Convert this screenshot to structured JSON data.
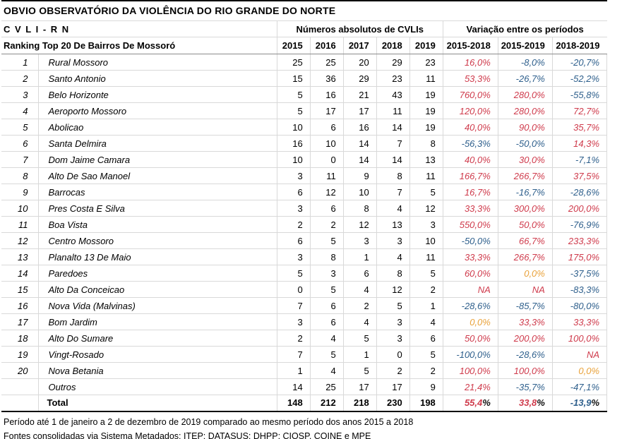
{
  "title": "OBVIO OBSERVATÓRIO DA VIOLÊNCIA DO RIO GRANDE DO NORTE",
  "colors": {
    "positive_variation": "#cf3b4c",
    "negative_variation": "#2e5f8c",
    "zero_variation": "#e9a23b",
    "na_variation": "#cf3b4c"
  },
  "chart_data": {
    "type": "table",
    "subtitle": "C V L I - R N",
    "group_headers": {
      "numbers": "Números absolutos de CVLIs",
      "variation": "Variação entre os períodos"
    },
    "ranking_header": "Ranking Top 20 De Bairros De Mossoró",
    "year_columns": [
      "2015",
      "2016",
      "2017",
      "2018",
      "2019"
    ],
    "variation_columns": [
      "2015-2018",
      "2015-2019",
      "2018-2019"
    ],
    "rows": [
      {
        "rank": "1",
        "name": "Rural Mossoro",
        "values": [
          25,
          25,
          20,
          29,
          23
        ],
        "variations": [
          "16,0%",
          "-8,0%",
          "-20,7%"
        ]
      },
      {
        "rank": "2",
        "name": "Santo Antonio",
        "values": [
          15,
          36,
          29,
          23,
          11
        ],
        "variations": [
          "53,3%",
          "-26,7%",
          "-52,2%"
        ]
      },
      {
        "rank": "3",
        "name": "Belo Horizonte",
        "values": [
          5,
          16,
          21,
          43,
          19
        ],
        "variations": [
          "760,0%",
          "280,0%",
          "-55,8%"
        ]
      },
      {
        "rank": "4",
        "name": "Aeroporto Mossoro",
        "values": [
          5,
          17,
          17,
          11,
          19
        ],
        "variations": [
          "120,0%",
          "280,0%",
          "72,7%"
        ]
      },
      {
        "rank": "5",
        "name": "Abolicao",
        "values": [
          10,
          6,
          16,
          14,
          19
        ],
        "variations": [
          "40,0%",
          "90,0%",
          "35,7%"
        ]
      },
      {
        "rank": "6",
        "name": "Santa Delmira",
        "values": [
          16,
          10,
          14,
          7,
          8
        ],
        "variations": [
          "-56,3%",
          "-50,0%",
          "14,3%"
        ]
      },
      {
        "rank": "7",
        "name": "Dom Jaime Camara",
        "values": [
          10,
          0,
          14,
          14,
          13
        ],
        "variations": [
          "40,0%",
          "30,0%",
          "-7,1%"
        ]
      },
      {
        "rank": "8",
        "name": "Alto De Sao Manoel",
        "values": [
          3,
          11,
          9,
          8,
          11
        ],
        "variations": [
          "166,7%",
          "266,7%",
          "37,5%"
        ]
      },
      {
        "rank": "9",
        "name": "Barrocas",
        "values": [
          6,
          12,
          10,
          7,
          5
        ],
        "variations": [
          "16,7%",
          "-16,7%",
          "-28,6%"
        ]
      },
      {
        "rank": "10",
        "name": "Pres Costa E Silva",
        "values": [
          3,
          6,
          8,
          4,
          12
        ],
        "variations": [
          "33,3%",
          "300,0%",
          "200,0%"
        ]
      },
      {
        "rank": "11",
        "name": "Boa Vista",
        "values": [
          2,
          2,
          12,
          13,
          3
        ],
        "variations": [
          "550,0%",
          "50,0%",
          "-76,9%"
        ]
      },
      {
        "rank": "12",
        "name": "Centro Mossoro",
        "values": [
          6,
          5,
          3,
          3,
          10
        ],
        "variations": [
          "-50,0%",
          "66,7%",
          "233,3%"
        ]
      },
      {
        "rank": "13",
        "name": "Planalto 13 De Maio",
        "values": [
          3,
          8,
          1,
          4,
          11
        ],
        "variations": [
          "33,3%",
          "266,7%",
          "175,0%"
        ]
      },
      {
        "rank": "14",
        "name": "Paredoes",
        "values": [
          5,
          3,
          6,
          8,
          5
        ],
        "variations": [
          "60,0%",
          "0,0%",
          "-37,5%"
        ]
      },
      {
        "rank": "15",
        "name": "Alto Da Conceicao",
        "values": [
          0,
          5,
          4,
          12,
          2
        ],
        "variations": [
          "NA",
          "NA",
          "-83,3%"
        ]
      },
      {
        "rank": "16",
        "name": "Nova Vida (Malvinas)",
        "values": [
          7,
          6,
          2,
          5,
          1
        ],
        "variations": [
          "-28,6%",
          "-85,7%",
          "-80,0%"
        ]
      },
      {
        "rank": "17",
        "name": "Bom Jardim",
        "values": [
          3,
          6,
          4,
          3,
          4
        ],
        "variations": [
          "0,0%",
          "33,3%",
          "33,3%"
        ]
      },
      {
        "rank": "18",
        "name": "Alto Do Sumare",
        "values": [
          2,
          4,
          5,
          3,
          6
        ],
        "variations": [
          "50,0%",
          "200,0%",
          "100,0%"
        ]
      },
      {
        "rank": "19",
        "name": "Vingt-Rosado",
        "values": [
          7,
          5,
          1,
          0,
          5
        ],
        "variations": [
          "-100,0%",
          "-28,6%",
          "NA"
        ]
      },
      {
        "rank": "20",
        "name": "Nova Betania",
        "values": [
          1,
          4,
          5,
          2,
          2
        ],
        "variations": [
          "100,0%",
          "100,0%",
          "0,0%"
        ]
      },
      {
        "rank": "",
        "name": "Outros",
        "values": [
          14,
          25,
          17,
          17,
          9
        ],
        "variations": [
          "21,4%",
          "-35,7%",
          "-47,1%"
        ]
      }
    ],
    "total_row": {
      "rank": "",
      "name": "Total",
      "values": [
        148,
        212,
        218,
        230,
        198
      ],
      "variations": [
        "55,4%",
        "33,8%",
        "-13,9%"
      ]
    }
  },
  "footer": {
    "line1": "Período até 1 de janeiro a 2 de dezembro de 2019 comparado ao mesmo período dos anos 2015 a 2018",
    "line2": "Fontes consolidadas via Sistema Metadados: ITEP; DATASUS; DHPP; CIOSP, COINE e MPE"
  }
}
